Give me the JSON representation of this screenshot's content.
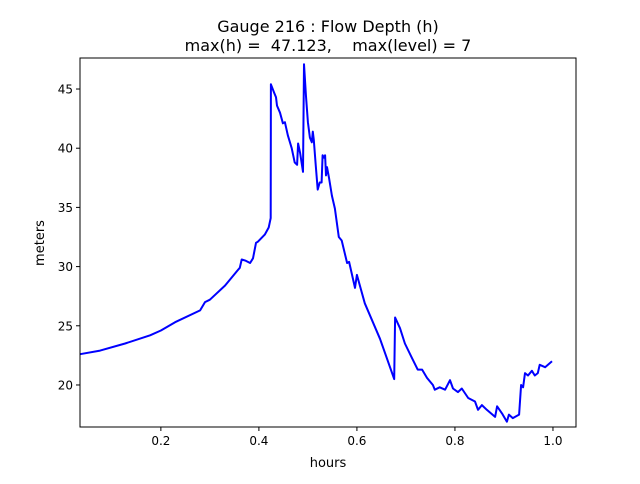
{
  "chart_data": {
    "type": "line",
    "title": "Gauge 216 : Flow Depth (h)",
    "subtitle": "max(h) =  47.123,    max(level) = 7",
    "xlabel": "hours",
    "ylabel": "meters",
    "xlim": [
      0.035,
      1.047
    ],
    "ylim": [
      16.45,
      47.62
    ],
    "xticks": [
      0.2,
      0.4,
      0.6,
      0.8,
      1.0
    ],
    "xtick_labels": [
      "0.2",
      "0.4",
      "0.6",
      "0.8",
      "1.0"
    ],
    "yticks": [
      20,
      25,
      30,
      35,
      40,
      45
    ],
    "ytick_labels": [
      "20",
      "25",
      "30",
      "35",
      "40",
      "45"
    ],
    "grid": false,
    "series": [
      {
        "name": "h",
        "color": "#0000ff",
        "x": [
          0.035,
          0.076,
          0.127,
          0.178,
          0.2,
          0.229,
          0.28,
          0.29,
          0.3,
          0.331,
          0.357,
          0.361,
          0.365,
          0.373,
          0.382,
          0.388,
          0.394,
          0.398,
          0.412,
          0.42,
          0.424,
          0.4245,
          0.431,
          0.435,
          0.437,
          0.443,
          0.449,
          0.453,
          0.459,
          0.467,
          0.473,
          0.478,
          0.48,
          0.484,
          0.49,
          0.492,
          0.496,
          0.5,
          0.504,
          0.508,
          0.51,
          0.512,
          0.516,
          0.52,
          0.524,
          0.528,
          0.53,
          0.533,
          0.535,
          0.537,
          0.539,
          0.543,
          0.549,
          0.555,
          0.563,
          0.569,
          0.58,
          0.584,
          0.596,
          0.6,
          0.616,
          0.647,
          0.676,
          0.678,
          0.688,
          0.698,
          0.712,
          0.724,
          0.733,
          0.743,
          0.755,
          0.759,
          0.769,
          0.78,
          0.79,
          0.796,
          0.806,
          0.814,
          0.827,
          0.841,
          0.847,
          0.855,
          0.865,
          0.882,
          0.886,
          0.896,
          0.906,
          0.91,
          0.918,
          0.931,
          0.935,
          0.939,
          0.943,
          0.949,
          0.957,
          0.963,
          0.969,
          0.973,
          0.984,
          0.998
        ],
        "y": [
          22.6,
          22.9,
          23.5,
          24.2,
          24.6,
          25.3,
          26.3,
          27.0,
          27.2,
          28.4,
          29.7,
          29.9,
          30.6,
          30.5,
          30.3,
          30.7,
          32.0,
          32.1,
          32.7,
          33.3,
          34.1,
          45.4,
          44.7,
          44.3,
          43.6,
          43.0,
          42.1,
          42.2,
          41.1,
          40.0,
          38.8,
          38.6,
          40.4,
          39.6,
          38.0,
          47.1,
          44.5,
          42.2,
          40.9,
          40.5,
          41.4,
          40.7,
          38.6,
          36.5,
          37.1,
          37.1,
          39.4,
          39.2,
          39.4,
          37.7,
          38.4,
          37.5,
          36.0,
          34.9,
          32.5,
          32.2,
          30.3,
          30.4,
          28.2,
          29.3,
          26.9,
          23.9,
          20.5,
          25.7,
          24.8,
          23.5,
          22.3,
          21.3,
          21.3,
          20.6,
          20.0,
          19.6,
          19.8,
          19.6,
          20.4,
          19.7,
          19.4,
          19.7,
          18.9,
          18.6,
          17.9,
          18.3,
          17.9,
          17.3,
          18.2,
          17.6,
          16.9,
          17.5,
          17.2,
          17.5,
          20.0,
          19.8,
          21.0,
          20.8,
          21.2,
          20.8,
          21.0,
          21.7,
          21.5,
          22.0
        ]
      }
    ]
  }
}
